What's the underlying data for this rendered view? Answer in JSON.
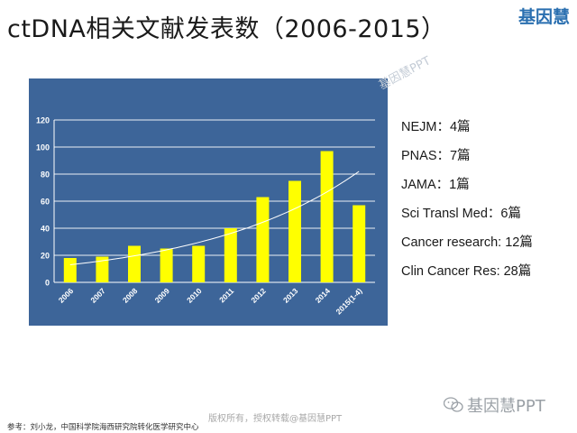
{
  "header": {
    "title": "ctDNA相关文献发表数（2006-2015）",
    "logo": "基因慧"
  },
  "chart_data": {
    "type": "bar",
    "categories": [
      "2006",
      "2007",
      "2008",
      "2009",
      "2010",
      "2011",
      "2012",
      "2013",
      "2014",
      "2015(1-4)"
    ],
    "values": [
      18,
      19,
      27,
      25,
      27,
      40,
      63,
      75,
      97,
      57
    ],
    "ylim": [
      0,
      120
    ],
    "yticks": [
      0,
      20,
      40,
      60,
      80,
      100,
      120
    ],
    "trendline": {
      "type": "exponential",
      "start": 13,
      "end": 82
    },
    "grid": true,
    "bar_color": "#ffff00",
    "background_color": "#3d6599"
  },
  "facts": [
    "NEJM：4篇",
    "PNAS：7篇",
    "JAMA：1篇",
    "Sci Transl Med：6篇",
    "Cancer research: 12篇",
    "Clin Cancer Res: 28篇"
  ],
  "watermarks": {
    "diagonal": "基因慧PPT",
    "bottom": "基因慧PPT",
    "copyright": "版权所有，授权转载@基因慧PPT"
  },
  "footer": {
    "reference": "参考：刘小龙，中国科学院海西研究院转化医学研究中心"
  }
}
